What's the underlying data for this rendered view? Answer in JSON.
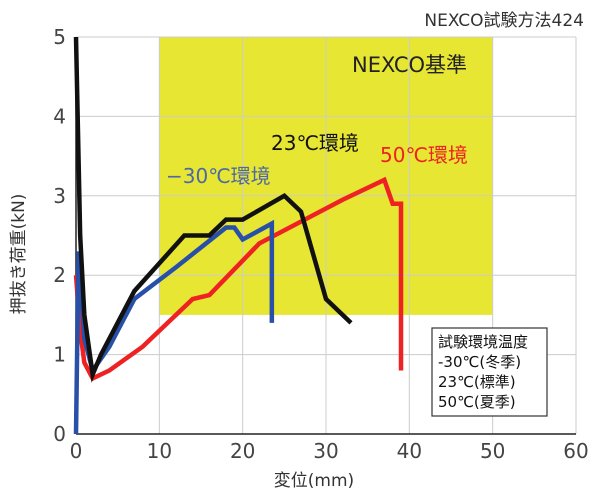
{
  "chart_data": {
    "type": "line",
    "source_label": "NEXCO試験方法424",
    "xlabel": "変位(mm)",
    "ylabel": "押抜き荷重(kN)",
    "xlim": [
      0,
      60
    ],
    "ylim": [
      0,
      5
    ],
    "xticks": [
      0,
      10,
      20,
      30,
      40,
      50,
      60
    ],
    "yticks": [
      0,
      1,
      2,
      3,
      4,
      5
    ],
    "grid": true,
    "standard_region": {
      "label": "NEXCO基準",
      "x": [
        10,
        50
      ],
      "y": [
        1.5,
        5
      ],
      "color": "#e6e633"
    },
    "series": [
      {
        "name": "23℃環境",
        "color": "#111111",
        "label_color": "#111111",
        "points": [
          [
            0,
            5
          ],
          [
            0.5,
            2.5
          ],
          [
            1,
            1.5
          ],
          [
            2,
            0.75
          ],
          [
            3,
            1.0
          ],
          [
            7,
            1.8
          ],
          [
            13,
            2.5
          ],
          [
            16,
            2.5
          ],
          [
            18,
            2.7
          ],
          [
            20,
            2.7
          ],
          [
            25,
            3.0
          ],
          [
            27,
            2.8
          ],
          [
            30,
            1.7
          ],
          [
            33,
            1.4
          ]
        ]
      },
      {
        "name": "−30℃環境",
        "color": "#2850a8",
        "label_color": "#4d67a8",
        "points": [
          [
            0,
            0
          ],
          [
            0.3,
            2.3
          ],
          [
            1,
            1.2
          ],
          [
            2,
            0.8
          ],
          [
            4,
            1.1
          ],
          [
            7,
            1.7
          ],
          [
            12,
            2.1
          ],
          [
            18,
            2.6
          ],
          [
            19,
            2.6
          ],
          [
            20,
            2.45
          ],
          [
            23.5,
            2.65
          ],
          [
            23.5,
            1.4
          ]
        ]
      },
      {
        "name": "50℃環境",
        "color": "#ee2222",
        "label_color": "#ee2222",
        "points": [
          [
            0,
            2.0
          ],
          [
            0.5,
            1.3
          ],
          [
            1,
            0.9
          ],
          [
            2,
            0.7
          ],
          [
            4,
            0.8
          ],
          [
            8,
            1.1
          ],
          [
            14,
            1.7
          ],
          [
            16,
            1.75
          ],
          [
            22,
            2.4
          ],
          [
            32,
            2.95
          ],
          [
            37,
            3.2
          ],
          [
            38,
            2.9
          ],
          [
            39,
            2.9
          ],
          [
            39,
            0.8
          ]
        ]
      }
    ],
    "notes": {
      "title": "試験環境温度",
      "lines": [
        "-30℃(冬季)",
        "23℃(標準)",
        "50℃(夏季)"
      ]
    }
  }
}
